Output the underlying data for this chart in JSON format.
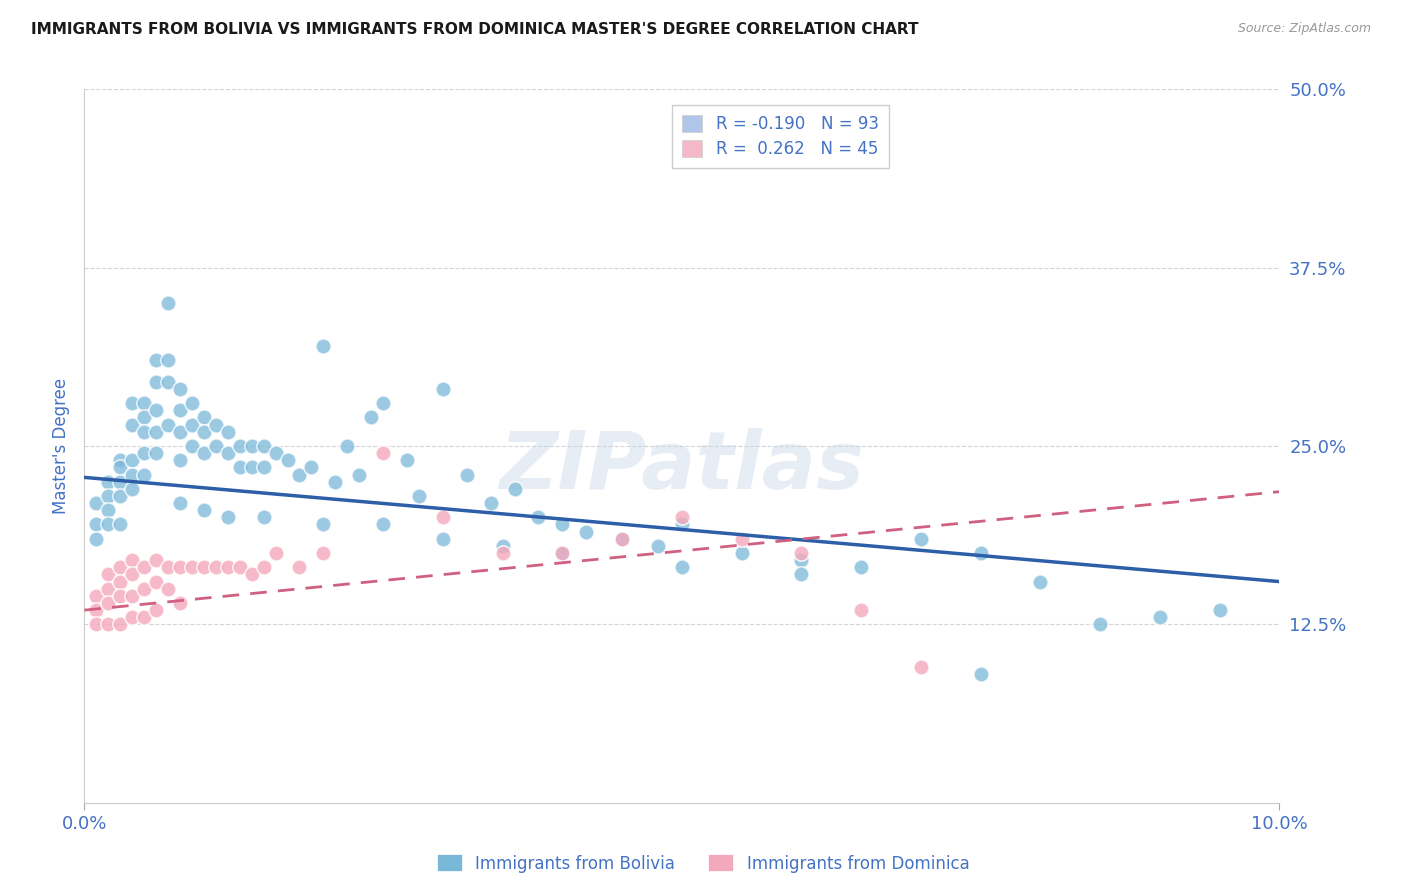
{
  "title": "IMMIGRANTS FROM BOLIVIA VS IMMIGRANTS FROM DOMINICA MASTER'S DEGREE CORRELATION CHART",
  "source_text": "Source: ZipAtlas.com",
  "ylabel": "Master's Degree",
  "xlim": [
    0.0,
    0.1
  ],
  "ylim": [
    0.0,
    0.5
  ],
  "xtick_positions": [
    0.0,
    0.1
  ],
  "xtick_labels": [
    "0.0%",
    "10.0%"
  ],
  "ytick_positions": [
    0.125,
    0.25,
    0.375,
    0.5
  ],
  "ytick_labels": [
    "12.5%",
    "25.0%",
    "37.5%",
    "50.0%"
  ],
  "bolivia_color": "#7ab8d9",
  "bolivia_edge_color": "#5a9fc4",
  "dominica_color": "#f4a8bc",
  "dominica_edge_color": "#e0809c",
  "bolivia_trendline_color": "#2c5fa8",
  "dominica_trendline_color": "#d06080",
  "grid_color": "#d0d0d0",
  "background_color": "#ffffff",
  "tick_color": "#4472c4",
  "watermark": "ZIPatlas",
  "bolivia_trend_x0": 0.0,
  "bolivia_trend_x1": 0.1,
  "bolivia_trend_y0": 0.228,
  "bolivia_trend_y1": 0.155,
  "dominica_trend_x0": 0.0,
  "dominica_trend_x1": 0.1,
  "dominica_trend_y0": 0.135,
  "dominica_trend_y1": 0.218,
  "bolivia_scatter_x": [
    0.001,
    0.001,
    0.001,
    0.002,
    0.002,
    0.002,
    0.002,
    0.003,
    0.003,
    0.003,
    0.003,
    0.003,
    0.004,
    0.004,
    0.004,
    0.004,
    0.004,
    0.005,
    0.005,
    0.005,
    0.005,
    0.005,
    0.006,
    0.006,
    0.006,
    0.006,
    0.006,
    0.007,
    0.007,
    0.007,
    0.007,
    0.008,
    0.008,
    0.008,
    0.008,
    0.009,
    0.009,
    0.009,
    0.01,
    0.01,
    0.01,
    0.011,
    0.011,
    0.012,
    0.012,
    0.013,
    0.013,
    0.014,
    0.014,
    0.015,
    0.015,
    0.016,
    0.017,
    0.018,
    0.019,
    0.02,
    0.021,
    0.022,
    0.023,
    0.024,
    0.025,
    0.027,
    0.028,
    0.03,
    0.032,
    0.034,
    0.036,
    0.038,
    0.04,
    0.042,
    0.045,
    0.048,
    0.05,
    0.055,
    0.06,
    0.065,
    0.07,
    0.075,
    0.08,
    0.085,
    0.09,
    0.095,
    0.008,
    0.01,
    0.012,
    0.015,
    0.02,
    0.025,
    0.03,
    0.035,
    0.04,
    0.05,
    0.06,
    0.075
  ],
  "bolivia_scatter_y": [
    0.21,
    0.195,
    0.185,
    0.225,
    0.215,
    0.205,
    0.195,
    0.24,
    0.235,
    0.225,
    0.215,
    0.195,
    0.28,
    0.265,
    0.24,
    0.23,
    0.22,
    0.28,
    0.27,
    0.26,
    0.245,
    0.23,
    0.31,
    0.295,
    0.275,
    0.26,
    0.245,
    0.35,
    0.31,
    0.295,
    0.265,
    0.29,
    0.275,
    0.26,
    0.24,
    0.28,
    0.265,
    0.25,
    0.27,
    0.26,
    0.245,
    0.265,
    0.25,
    0.26,
    0.245,
    0.25,
    0.235,
    0.25,
    0.235,
    0.25,
    0.235,
    0.245,
    0.24,
    0.23,
    0.235,
    0.32,
    0.225,
    0.25,
    0.23,
    0.27,
    0.28,
    0.24,
    0.215,
    0.29,
    0.23,
    0.21,
    0.22,
    0.2,
    0.195,
    0.19,
    0.185,
    0.18,
    0.195,
    0.175,
    0.17,
    0.165,
    0.185,
    0.175,
    0.155,
    0.125,
    0.13,
    0.135,
    0.21,
    0.205,
    0.2,
    0.2,
    0.195,
    0.195,
    0.185,
    0.18,
    0.175,
    0.165,
    0.16,
    0.09
  ],
  "dominica_scatter_x": [
    0.001,
    0.001,
    0.001,
    0.002,
    0.002,
    0.002,
    0.002,
    0.003,
    0.003,
    0.003,
    0.003,
    0.004,
    0.004,
    0.004,
    0.004,
    0.005,
    0.005,
    0.005,
    0.006,
    0.006,
    0.006,
    0.007,
    0.007,
    0.008,
    0.008,
    0.009,
    0.01,
    0.011,
    0.012,
    0.013,
    0.014,
    0.015,
    0.016,
    0.018,
    0.02,
    0.025,
    0.03,
    0.035,
    0.04,
    0.045,
    0.05,
    0.055,
    0.06,
    0.065,
    0.07
  ],
  "dominica_scatter_y": [
    0.145,
    0.135,
    0.125,
    0.16,
    0.15,
    0.14,
    0.125,
    0.165,
    0.155,
    0.145,
    0.125,
    0.17,
    0.16,
    0.145,
    0.13,
    0.165,
    0.15,
    0.13,
    0.17,
    0.155,
    0.135,
    0.165,
    0.15,
    0.165,
    0.14,
    0.165,
    0.165,
    0.165,
    0.165,
    0.165,
    0.16,
    0.165,
    0.175,
    0.165,
    0.175,
    0.245,
    0.2,
    0.175,
    0.175,
    0.185,
    0.2,
    0.185,
    0.175,
    0.135,
    0.095
  ]
}
